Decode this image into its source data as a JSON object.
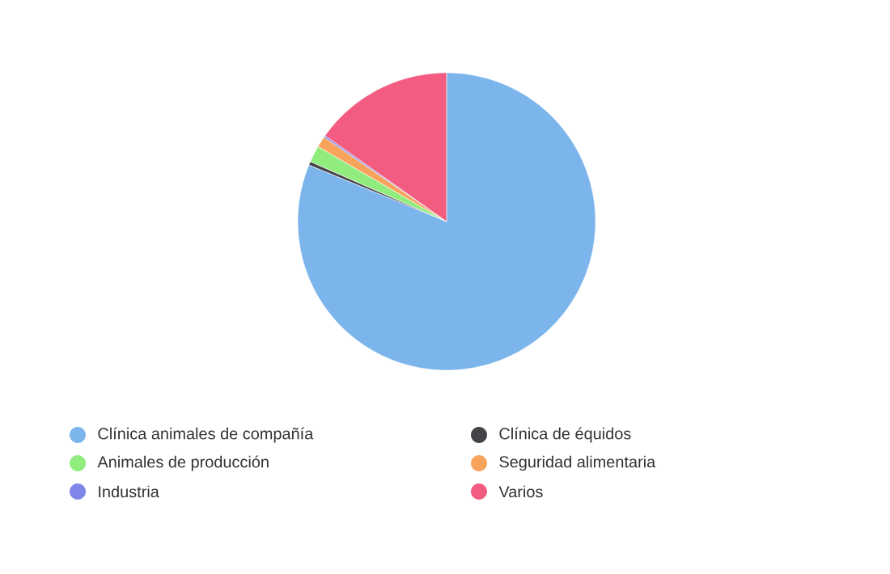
{
  "chart_data": {
    "type": "pie",
    "categories": [
      "Clínica animales de compañía",
      "Clínica de équidos",
      "Animales de producción",
      "Seguridad alimentaria",
      "Industria",
      "Varios"
    ],
    "values": [
      81.2,
      0.4,
      1.8,
      1.2,
      0.2,
      15.2
    ],
    "colors": [
      "#7cb5ec",
      "#434348",
      "#90ed7d",
      "#f7a35c",
      "#8085e9",
      "#f15c80"
    ],
    "legend": "bottom"
  }
}
